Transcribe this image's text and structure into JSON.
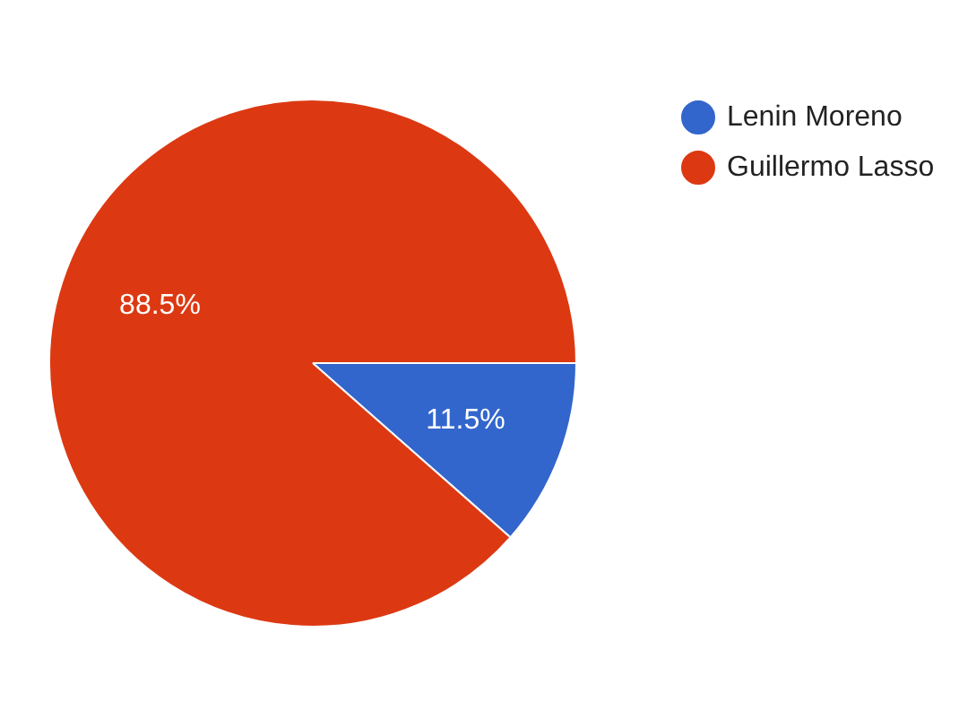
{
  "chart_data": {
    "type": "pie",
    "categories": [
      "Lenin Moreno",
      "Guillermo Lasso"
    ],
    "values": [
      11.5,
      88.5
    ],
    "colors": [
      "#3366cc",
      "#dc3912"
    ],
    "legend": "top right",
    "value_labels": [
      "11.5%",
      "88.5%"
    ]
  }
}
